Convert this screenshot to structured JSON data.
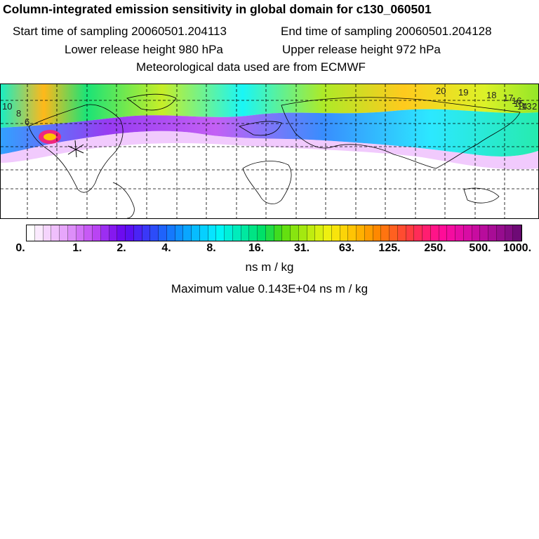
{
  "header": {
    "title": "Column-integrated emission sensitivity in global domain for c130_060501",
    "start_time": "Start time of sampling 20060501.204113",
    "end_time": "End time of sampling 20060501.204128",
    "lower_height": "Lower release height  980 hPa",
    "upper_height": "Upper release height  972 hPa",
    "met_data": "Meteorological data used are from ECMWF"
  },
  "colorbar": {
    "tick_labels": [
      "0.",
      "1.",
      "2.",
      "4.",
      "8.",
      "16.",
      "31.",
      "63.",
      "125.",
      "250.",
      "500.",
      "1000."
    ],
    "colors": [
      "#ffffff",
      "#fbeafe",
      "#f5d4fd",
      "#efbffc",
      "#e7a6fb",
      "#dd8ef9",
      "#d272f7",
      "#c75af5",
      "#b944f3",
      "#9c2ef1",
      "#8518ef",
      "#6c0bf0",
      "#5a10f2",
      "#4a24f5",
      "#3a38f7",
      "#2c4cf9",
      "#1f63fb",
      "#1579fd",
      "#0e90ff",
      "#0aa6ff",
      "#07bcff",
      "#06d0ff",
      "#07e4ff",
      "#00f5f5",
      "#00f0d8",
      "#00ecbc",
      "#00e8a0",
      "#00e484",
      "#00e068",
      "#20dd44",
      "#40dc20",
      "#64e010",
      "#88e410",
      "#a4e810",
      "#c0ec10",
      "#d8f010",
      "#eef010",
      "#f8e40c",
      "#fcd408",
      "#ffc404",
      "#ffb000",
      "#ff9c00",
      "#ff8800",
      "#ff7410",
      "#ff6020",
      "#ff4c30",
      "#ff3c40",
      "#ff2c58",
      "#ff1e70",
      "#ff1488",
      "#ff0c98",
      "#f40ca0",
      "#e60ca4",
      "#d80ca4",
      "#c80ca0",
      "#b80c9c",
      "#a80c96",
      "#960c8e",
      "#840c84",
      "#6e0a76"
    ]
  },
  "units": "ns m / kg",
  "max_value": "Maximum value  0.143E+04 ns m / kg",
  "map": {
    "contour_labels": [
      "10",
      "8",
      "6",
      "20",
      "19",
      "18",
      "17",
      "16",
      "15",
      "14",
      "13",
      "2"
    ]
  }
}
